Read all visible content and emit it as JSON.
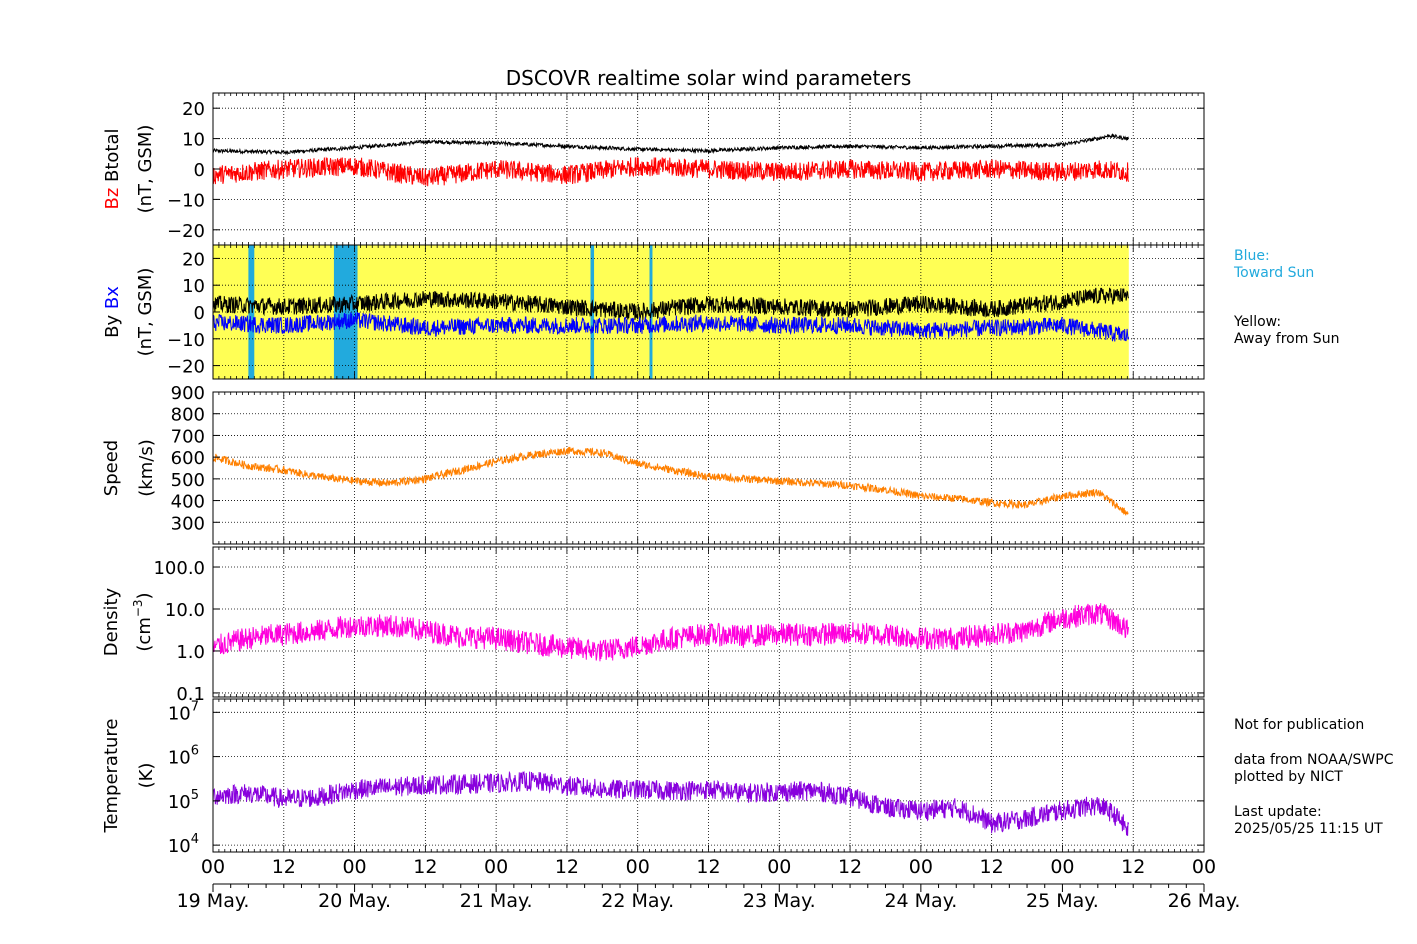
{
  "title": "DSCOVR realtime solar wind parameters",
  "colors": {
    "btotal": "#000000",
    "bz": "#ff0000",
    "by": "#000000",
    "bx": "#0000ff",
    "speed": "#ff8000",
    "density": "#ff00dd",
    "temperature": "#8800dd",
    "away_fill": "#ffff55",
    "toward_fill": "#22aadd",
    "legend_blue_text": "#22aadd"
  },
  "legend": {
    "blue_label": "Blue:",
    "blue_text": "Toward Sun",
    "yellow_label": "Yellow:",
    "yellow_text": "Away from Sun"
  },
  "notes": {
    "line1": "Not for publication",
    "line2": "data from NOAA/SWPC",
    "line3": "plotted by NICT",
    "line4": "Last update:",
    "line5": "2025/05/25 11:15 UT"
  },
  "x_axis": {
    "hour_ticks": [
      "00",
      "12",
      "00",
      "12",
      "00",
      "12",
      "00",
      "12",
      "00",
      "12",
      "00",
      "12",
      "00",
      "12",
      "00"
    ],
    "day_labels": [
      "19 May.",
      "20 May.",
      "21 May.",
      "22 May.",
      "23 May.",
      "24 May.",
      "25 May.",
      "26 May."
    ],
    "range_hours": [
      0,
      168
    ],
    "data_end_hours": 155.25
  },
  "chart_data": [
    {
      "type": "line",
      "panel": "magnetic-total-z",
      "ylabel_parts": [
        "Bz",
        "Btotal",
        "(nT, GSM)"
      ],
      "yticks": [
        "20",
        "10",
        "0",
        "−10",
        "−20"
      ],
      "ylim": [
        -25,
        25
      ],
      "grid": true,
      "series": [
        {
          "name": "Btotal",
          "x_hours": [
            0,
            12,
            24,
            36,
            48,
            60,
            72,
            84,
            96,
            108,
            120,
            132,
            144,
            150,
            152,
            155
          ],
          "values": [
            6,
            5.5,
            7,
            9,
            8.5,
            7.5,
            6.5,
            6,
            7,
            7.5,
            7,
            7.5,
            8,
            10,
            11,
            10
          ]
        },
        {
          "name": "Bz",
          "x_hours": [
            0,
            12,
            24,
            36,
            48,
            60,
            72,
            84,
            96,
            108,
            120,
            132,
            144,
            150,
            155
          ],
          "values": [
            -2,
            0,
            1,
            -3,
            0,
            -2,
            1,
            0,
            -1,
            0,
            -1,
            0,
            -1,
            0,
            -1
          ]
        }
      ]
    },
    {
      "type": "line",
      "panel": "magnetic-y-x",
      "ylabel_parts": [
        "By",
        "Bx",
        "(nT, GSM)"
      ],
      "yticks": [
        "20",
        "10",
        "0",
        "−10",
        "−20"
      ],
      "ylim": [
        -25,
        25
      ],
      "grid": true,
      "series": [
        {
          "name": "By",
          "x_hours": [
            0,
            12,
            24,
            36,
            48,
            60,
            72,
            84,
            96,
            108,
            120,
            132,
            144,
            150,
            155
          ],
          "values": [
            3,
            2,
            3,
            5,
            4,
            2,
            0,
            3,
            2,
            1,
            3,
            1,
            4,
            6,
            6
          ]
        },
        {
          "name": "Bx",
          "x_hours": [
            0,
            12,
            24,
            36,
            48,
            60,
            72,
            84,
            96,
            108,
            120,
            132,
            144,
            150,
            155
          ],
          "values": [
            -4,
            -5,
            -3,
            -6,
            -5,
            -5,
            -5,
            -4,
            -5,
            -5,
            -7,
            -6,
            -5,
            -7,
            -9
          ]
        }
      ],
      "toward_sun_intervals_hours": [
        [
          6,
          7
        ],
        [
          20.5,
          24.5
        ],
        [
          64,
          64.6
        ],
        [
          74,
          74.5
        ]
      ]
    },
    {
      "type": "line",
      "panel": "speed",
      "ylabel_parts": [
        "Speed",
        "(km/s)"
      ],
      "yticks": [
        "900",
        "800",
        "700",
        "600",
        "500",
        "400",
        "300"
      ],
      "ylim": [
        200,
        900
      ],
      "grid": true,
      "series": [
        {
          "name": "Speed",
          "x_hours": [
            0,
            6,
            12,
            18,
            24,
            30,
            36,
            42,
            48,
            54,
            60,
            66,
            72,
            78,
            84,
            90,
            96,
            102,
            108,
            114,
            120,
            126,
            132,
            138,
            144,
            150,
            155
          ],
          "values": [
            600,
            560,
            540,
            510,
            490,
            480,
            500,
            540,
            580,
            610,
            630,
            620,
            570,
            540,
            510,
            500,
            490,
            480,
            470,
            450,
            420,
            410,
            390,
            380,
            420,
            440,
            340
          ]
        }
      ]
    },
    {
      "type": "line",
      "panel": "density",
      "ylabel_parts": [
        "Density",
        "(cm",
        "−3",
        ")"
      ],
      "yticks": [
        "100.0",
        "10.0",
        "1.0",
        "0.1"
      ],
      "yscale": "log",
      "ylim": [
        0.08,
        300
      ],
      "grid": true,
      "series": [
        {
          "name": "Density",
          "x_hours": [
            0,
            6,
            12,
            18,
            24,
            30,
            36,
            42,
            48,
            54,
            60,
            66,
            72,
            78,
            84,
            90,
            96,
            102,
            108,
            114,
            120,
            126,
            132,
            138,
            144,
            150,
            155
          ],
          "values": [
            1.2,
            2,
            2.5,
            3,
            4,
            4,
            3,
            2.2,
            2,
            1.5,
            1.2,
            1,
            1.3,
            2,
            2.5,
            2.2,
            2.5,
            2.5,
            2.6,
            2.5,
            2,
            2,
            2.5,
            3,
            6,
            8,
            3
          ]
        }
      ]
    },
    {
      "type": "line",
      "panel": "temperature",
      "ylabel_parts": [
        "Temperature",
        "(K)"
      ],
      "yticks": [
        "10",
        "10",
        "10",
        "10"
      ],
      "ytick_exponents": [
        "7",
        "6",
        "5",
        "4"
      ],
      "yscale": "log",
      "ylim": [
        7000,
        20000000
      ],
      "grid": true,
      "series": [
        {
          "name": "Temperature",
          "x_hours": [
            0,
            6,
            12,
            18,
            24,
            30,
            36,
            42,
            48,
            54,
            60,
            66,
            72,
            78,
            84,
            90,
            96,
            102,
            108,
            114,
            120,
            126,
            132,
            138,
            144,
            150,
            155
          ],
          "values": [
            130000,
            150000,
            110000,
            120000,
            180000,
            200000,
            230000,
            240000,
            250000,
            280000,
            220000,
            180000,
            180000,
            170000,
            180000,
            150000,
            160000,
            170000,
            120000,
            70000,
            60000,
            70000,
            30000,
            40000,
            60000,
            80000,
            22000
          ]
        }
      ]
    }
  ]
}
